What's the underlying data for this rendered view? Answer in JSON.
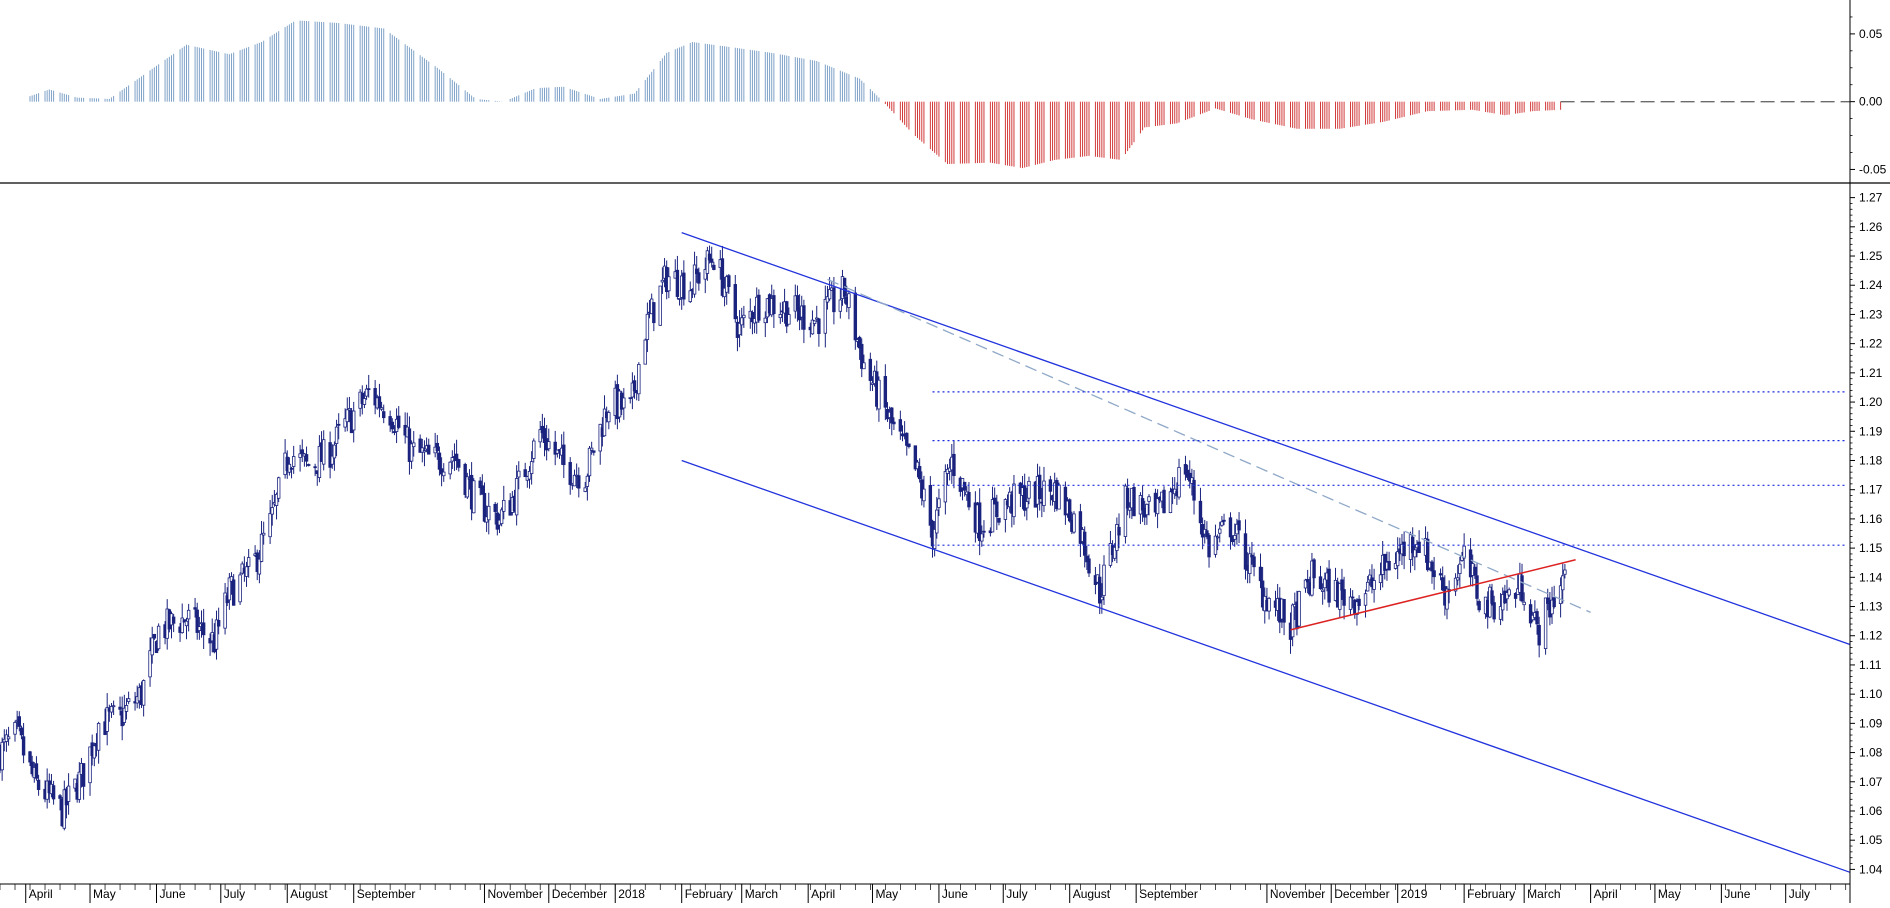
{
  "chart_data": [
    {
      "panel": "oscillator",
      "type": "bar",
      "title": "",
      "xlabel": "",
      "ylabel": "",
      "ylim": [
        -0.06,
        0.075
      ],
      "yticks": [
        "0.05",
        "0.00",
        "-0.05"
      ],
      "ytick_values": [
        0.05,
        0.0,
        -0.05
      ],
      "zero_line": "dashed",
      "positive_color": "#7fa2c8",
      "negative_color": "#d23a3a",
      "date_range": [
        "2017-04-01",
        "2019-03-18"
      ],
      "segments": [
        {
          "date": "2017-04-01",
          "value": 0.003
        },
        {
          "date": "2017-04-12",
          "value": 0.009
        },
        {
          "date": "2017-04-25",
          "value": 0.003
        },
        {
          "date": "2017-05-10",
          "value": 0.002
        },
        {
          "date": "2017-05-28",
          "value": 0.022
        },
        {
          "date": "2017-06-15",
          "value": 0.042
        },
        {
          "date": "2017-07-05",
          "value": 0.035
        },
        {
          "date": "2017-07-20",
          "value": 0.044
        },
        {
          "date": "2017-08-05",
          "value": 0.06
        },
        {
          "date": "2017-08-25",
          "value": 0.058
        },
        {
          "date": "2017-09-15",
          "value": 0.054
        },
        {
          "date": "2017-10-10",
          "value": 0.025
        },
        {
          "date": "2017-10-28",
          "value": 0.002
        },
        {
          "date": "2017-11-10",
          "value": 0.0
        },
        {
          "date": "2017-11-25",
          "value": 0.01
        },
        {
          "date": "2017-12-08",
          "value": 0.011
        },
        {
          "date": "2017-12-25",
          "value": 0.002
        },
        {
          "date": "2018-01-10",
          "value": 0.006
        },
        {
          "date": "2018-01-25",
          "value": 0.036
        },
        {
          "date": "2018-02-06",
          "value": 0.044
        },
        {
          "date": "2018-02-25",
          "value": 0.04
        },
        {
          "date": "2018-03-15",
          "value": 0.036
        },
        {
          "date": "2018-04-05",
          "value": 0.03
        },
        {
          "date": "2018-04-25",
          "value": 0.017
        },
        {
          "date": "2018-05-06",
          "value": 0.0
        },
        {
          "date": "2018-05-20",
          "value": -0.024
        },
        {
          "date": "2018-06-05",
          "value": -0.046
        },
        {
          "date": "2018-06-25",
          "value": -0.045
        },
        {
          "date": "2018-07-10",
          "value": -0.049
        },
        {
          "date": "2018-07-25",
          "value": -0.043
        },
        {
          "date": "2018-08-10",
          "value": -0.04
        },
        {
          "date": "2018-08-25",
          "value": -0.043
        },
        {
          "date": "2018-09-05",
          "value": -0.019
        },
        {
          "date": "2018-09-20",
          "value": -0.016
        },
        {
          "date": "2018-10-08",
          "value": -0.005
        },
        {
          "date": "2018-10-25",
          "value": -0.013
        },
        {
          "date": "2018-11-15",
          "value": -0.02
        },
        {
          "date": "2018-12-05",
          "value": -0.02
        },
        {
          "date": "2018-12-25",
          "value": -0.015
        },
        {
          "date": "2019-01-15",
          "value": -0.007
        },
        {
          "date": "2019-02-05",
          "value": -0.006
        },
        {
          "date": "2019-02-20",
          "value": -0.01
        },
        {
          "date": "2019-03-05",
          "value": -0.007
        },
        {
          "date": "2019-03-18",
          "value": -0.006
        }
      ]
    },
    {
      "panel": "price",
      "type": "candlestick",
      "title": "",
      "xlabel": "",
      "ylabel": "",
      "ylim": [
        1.035,
        1.275
      ],
      "yticks": [
        "1.27",
        "1.26",
        "1.25",
        "1.24",
        "1.23",
        "1.22",
        "1.21",
        "1.20",
        "1.19",
        "1.18",
        "1.17",
        "1.16",
        "1.15",
        "1.14",
        "1.13",
        "1.12",
        "1.11",
        "1.10",
        "1.09",
        "1.08",
        "1.07",
        "1.06",
        "1.05",
        "1.04"
      ],
      "ytick_values": [
        1.27,
        1.26,
        1.25,
        1.24,
        1.23,
        1.22,
        1.21,
        1.2,
        1.19,
        1.18,
        1.17,
        1.16,
        1.15,
        1.14,
        1.13,
        1.12,
        1.11,
        1.1,
        1.09,
        1.08,
        1.07,
        1.06,
        1.05,
        1.04
      ],
      "x_range": [
        "2017-03-20",
        "2019-07-31"
      ],
      "xticks": [
        {
          "label": "April",
          "date": "2017-04-01"
        },
        {
          "label": "May",
          "date": "2017-05-01"
        },
        {
          "label": "June",
          "date": "2017-06-01"
        },
        {
          "label": "July",
          "date": "2017-07-01"
        },
        {
          "label": "August",
          "date": "2017-08-01"
        },
        {
          "label": "September",
          "date": "2017-09-01"
        },
        {
          "label": "November",
          "date": "2017-11-01"
        },
        {
          "label": "December",
          "date": "2017-12-01"
        },
        {
          "label": "2018",
          "date": "2018-01-01"
        },
        {
          "label": "February",
          "date": "2018-02-01"
        },
        {
          "label": "March",
          "date": "2018-03-01"
        },
        {
          "label": "April",
          "date": "2018-04-01"
        },
        {
          "label": "May",
          "date": "2018-05-01"
        },
        {
          "label": "June",
          "date": "2018-06-01"
        },
        {
          "label": "July",
          "date": "2018-07-01"
        },
        {
          "label": "August",
          "date": "2018-08-01"
        },
        {
          "label": "September",
          "date": "2018-09-01"
        },
        {
          "label": "November",
          "date": "2018-11-01"
        },
        {
          "label": "December",
          "date": "2018-12-01"
        },
        {
          "label": "2019",
          "date": "2019-01-01"
        },
        {
          "label": "February",
          "date": "2019-02-01"
        },
        {
          "label": "March",
          "date": "2019-03-01"
        },
        {
          "label": "April",
          "date": "2019-04-01"
        },
        {
          "label": "May",
          "date": "2019-05-01"
        },
        {
          "label": "June",
          "date": "2019-06-01"
        },
        {
          "label": "July",
          "date": "2019-07-01"
        }
      ],
      "candle_color": "#1a237e",
      "price_path": [
        {
          "date": "2017-03-20",
          "close": 1.08
        },
        {
          "date": "2017-03-28",
          "close": 1.086
        },
        {
          "date": "2017-04-05",
          "close": 1.07
        },
        {
          "date": "2017-04-18",
          "close": 1.06
        },
        {
          "date": "2017-04-28",
          "close": 1.073
        },
        {
          "date": "2017-05-05",
          "close": 1.09
        },
        {
          "date": "2017-05-15",
          "close": 1.092
        },
        {
          "date": "2017-05-25",
          "close": 1.1
        },
        {
          "date": "2017-06-02",
          "close": 1.122
        },
        {
          "date": "2017-06-15",
          "close": 1.126
        },
        {
          "date": "2017-06-28",
          "close": 1.118
        },
        {
          "date": "2017-07-05",
          "close": 1.135
        },
        {
          "date": "2017-07-15",
          "close": 1.142
        },
        {
          "date": "2017-07-25",
          "close": 1.16
        },
        {
          "date": "2017-08-02",
          "close": 1.183
        },
        {
          "date": "2017-08-10",
          "close": 1.178
        },
        {
          "date": "2017-08-20",
          "close": 1.182
        },
        {
          "date": "2017-08-28",
          "close": 1.192
        },
        {
          "date": "2017-09-08",
          "close": 1.203
        },
        {
          "date": "2017-09-18",
          "close": 1.197
        },
        {
          "date": "2017-09-28",
          "close": 1.183
        },
        {
          "date": "2017-10-08",
          "close": 1.18
        },
        {
          "date": "2017-10-18",
          "close": 1.182
        },
        {
          "date": "2017-10-28",
          "close": 1.166
        },
        {
          "date": "2017-11-08",
          "close": 1.16
        },
        {
          "date": "2017-11-15",
          "close": 1.168
        },
        {
          "date": "2017-11-27",
          "close": 1.19
        },
        {
          "date": "2017-12-08",
          "close": 1.178
        },
        {
          "date": "2017-12-18",
          "close": 1.175
        },
        {
          "date": "2017-12-29",
          "close": 1.2
        },
        {
          "date": "2018-01-08",
          "close": 1.197
        },
        {
          "date": "2018-01-15",
          "close": 1.225
        },
        {
          "date": "2018-01-25",
          "close": 1.243
        },
        {
          "date": "2018-02-05",
          "close": 1.24
        },
        {
          "date": "2018-02-16",
          "close": 1.25
        },
        {
          "date": "2018-02-28",
          "close": 1.225
        },
        {
          "date": "2018-03-10",
          "close": 1.235
        },
        {
          "date": "2018-03-22",
          "close": 1.232
        },
        {
          "date": "2018-04-05",
          "close": 1.228
        },
        {
          "date": "2018-04-18",
          "close": 1.238
        },
        {
          "date": "2018-04-27",
          "close": 1.213
        },
        {
          "date": "2018-05-10",
          "close": 1.192
        },
        {
          "date": "2018-05-22",
          "close": 1.175
        },
        {
          "date": "2018-05-29",
          "close": 1.155
        },
        {
          "date": "2018-06-07",
          "close": 1.18
        },
        {
          "date": "2018-06-20",
          "close": 1.158
        },
        {
          "date": "2018-07-02",
          "close": 1.165
        },
        {
          "date": "2018-07-12",
          "close": 1.168
        },
        {
          "date": "2018-07-25",
          "close": 1.17
        },
        {
          "date": "2018-08-05",
          "close": 1.158
        },
        {
          "date": "2018-08-15",
          "close": 1.135
        },
        {
          "date": "2018-08-28",
          "close": 1.168
        },
        {
          "date": "2018-09-10",
          "close": 1.16
        },
        {
          "date": "2018-09-24",
          "close": 1.178
        },
        {
          "date": "2018-10-05",
          "close": 1.15
        },
        {
          "date": "2018-10-15",
          "close": 1.158
        },
        {
          "date": "2018-10-30",
          "close": 1.135
        },
        {
          "date": "2018-11-12",
          "close": 1.123
        },
        {
          "date": "2018-11-22",
          "close": 1.14
        },
        {
          "date": "2018-12-05",
          "close": 1.134
        },
        {
          "date": "2018-12-15",
          "close": 1.133
        },
        {
          "date": "2018-12-28",
          "close": 1.145
        },
        {
          "date": "2019-01-10",
          "close": 1.154
        },
        {
          "date": "2019-01-23",
          "close": 1.135
        },
        {
          "date": "2019-02-01",
          "close": 1.146
        },
        {
          "date": "2019-02-10",
          "close": 1.13
        },
        {
          "date": "2019-02-20",
          "close": 1.133
        },
        {
          "date": "2019-03-01",
          "close": 1.137
        },
        {
          "date": "2019-03-07",
          "close": 1.121
        },
        {
          "date": "2019-03-14",
          "close": 1.132
        },
        {
          "date": "2019-03-20",
          "close": 1.141
        }
      ],
      "annotations": {
        "channel_upper": {
          "color": "#2233dd",
          "style": "solid",
          "points": [
            {
              "date": "2018-02-01",
              "value": 1.258
            },
            {
              "date": "2019-07-31",
              "value": 1.117
            }
          ]
        },
        "channel_lower": {
          "color": "#2233dd",
          "style": "solid",
          "points": [
            {
              "date": "2018-02-01",
              "value": 1.18
            },
            {
              "date": "2019-07-31",
              "value": 1.039
            }
          ]
        },
        "dashed_trend": {
          "color": "#8fa8c8",
          "style": "dashed",
          "points": [
            {
              "date": "2018-04-10",
              "value": 1.242
            },
            {
              "date": "2019-04-01",
              "value": 1.128
            }
          ]
        },
        "red_support": {
          "color": "#dd2222",
          "style": "solid",
          "points": [
            {
              "date": "2018-11-12",
              "value": 1.122
            },
            {
              "date": "2019-03-25",
              "value": 1.146
            }
          ]
        },
        "horizontal_levels": {
          "color": "#1a2bdd",
          "style": "dotted",
          "start_date": "2018-05-29",
          "values": [
            1.2035,
            1.1868,
            1.1715,
            1.151
          ]
        }
      }
    }
  ]
}
